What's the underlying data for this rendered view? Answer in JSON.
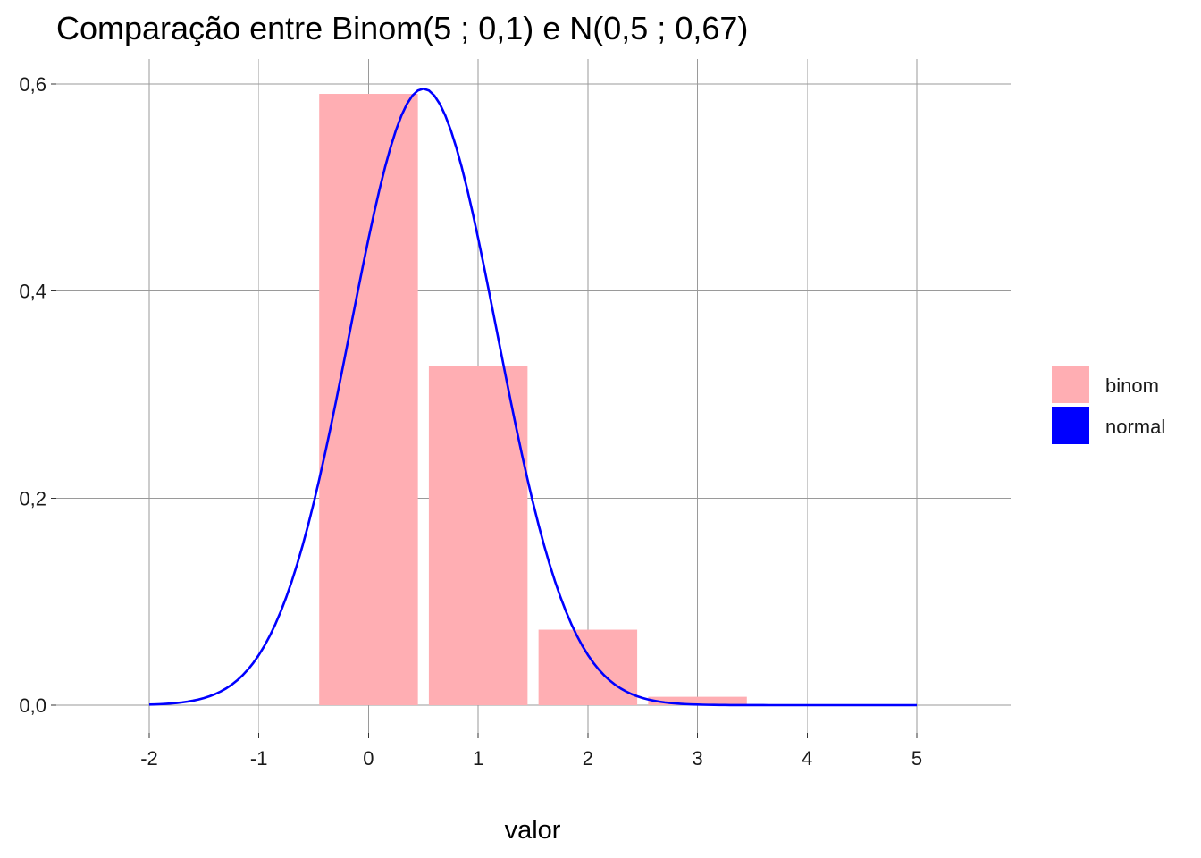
{
  "chart_data": {
    "type": "bar",
    "title": "Comparação entre Binom(5 ; 0,1)  e  N(0,5 ; 0,67)",
    "xlabel": "valor",
    "ylabel": "",
    "xlim": [
      -2.5,
      5.5
    ],
    "ylim": [
      0,
      0.6
    ],
    "x_ticks": [
      -2,
      -1,
      0,
      1,
      2,
      3,
      4,
      5
    ],
    "x_tick_labels": [
      "-2",
      "-1",
      "0",
      "1",
      "2",
      "3",
      "4",
      "5"
    ],
    "y_ticks": [
      0,
      0.2,
      0.4,
      0.6
    ],
    "y_tick_labels": [
      "0,0",
      "0,2",
      "0,4",
      "0,6"
    ],
    "grid": true,
    "legend_position": "right",
    "legend": [
      {
        "label": "binom",
        "color": "#ffaeb3"
      },
      {
        "label": "normal",
        "color": "#0000ff"
      }
    ],
    "series": [
      {
        "name": "binom",
        "kind": "bar",
        "color": "#ffaeb3",
        "x": [
          0,
          1,
          2,
          3,
          4,
          5
        ],
        "values": [
          0.59049,
          0.32805,
          0.0729,
          0.0081,
          0.00045,
          1e-05
        ]
      },
      {
        "name": "normal",
        "kind": "line",
        "color": "#0000ff",
        "x_range": [
          -2,
          5
        ],
        "mean": 0.5,
        "sd": 0.67
      }
    ]
  }
}
